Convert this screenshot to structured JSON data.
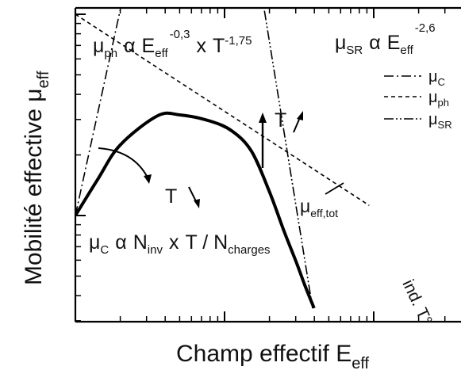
{
  "chart_data": {
    "type": "line",
    "title": "",
    "xlabel": "Champ effectif E",
    "xlabel_sub": "eff",
    "ylabel": "Mobilité effective μ",
    "ylabel_sub": "eff",
    "x_scale": "log",
    "y_scale": "log",
    "grid": false,
    "legend_position": "top-right",
    "legend": [
      {
        "series": "mu_c",
        "base": "μ",
        "sub": "C",
        "dash": "dash-dot"
      },
      {
        "series": "mu_ph",
        "base": "μ",
        "sub": "ph",
        "dash": "dash"
      },
      {
        "series": "mu_sr",
        "base": "μ",
        "sub": "SR",
        "dash": "dash-dot-dot"
      }
    ],
    "series": [
      {
        "id": "mu_c",
        "x": [
          0.0,
          0.3
        ],
        "y": [
          0.0,
          1.02
        ]
      },
      {
        "id": "mu_ph",
        "x": [
          0.0,
          1.97
        ],
        "y": [
          1.0,
          0.05
        ]
      },
      {
        "id": "mu_sr",
        "x": [
          1.14,
          1.59
        ],
        "y": [
          1.6,
          -0.46
        ]
      },
      {
        "id": "mu_eff_tot",
        "x": [
          0.0,
          0.15,
          0.3,
          0.55,
          0.7,
          0.9,
          1.05,
          1.18,
          1.3,
          1.4,
          1.48,
          1.54,
          1.6
        ],
        "y": [
          0.0,
          0.18,
          0.35,
          0.495,
          0.5,
          0.47,
          0.42,
          0.32,
          0.12,
          -0.08,
          -0.23,
          -0.35,
          -0.46
        ]
      }
    ],
    "annotations": {
      "mu_ph_law": {
        "mu": "μ",
        "mu_sub": "ph",
        "alpha": "α",
        "e": "E",
        "e_sub": "eff",
        "e_exp": "-0,3",
        "times": "x",
        "t": "T",
        "t_exp": "-1,75"
      },
      "mu_sr_law": {
        "mu": "μ",
        "mu_sub": "SR",
        "alpha": "α",
        "e": "E",
        "e_sub": "eff",
        "e_exp": "-2,6"
      },
      "mu_c_law": {
        "mu": "μ",
        "mu_sub": "C",
        "alpha": "α",
        "n": "N",
        "n_sub": "inv",
        "times": "x",
        "t_over": "T / N",
        "n2_sub": "charges"
      },
      "t_up": "T",
      "t_down": "T",
      "total": {
        "base": "μ",
        "sub": "eff,tot"
      },
      "ind_t": "ind. T°"
    }
  }
}
